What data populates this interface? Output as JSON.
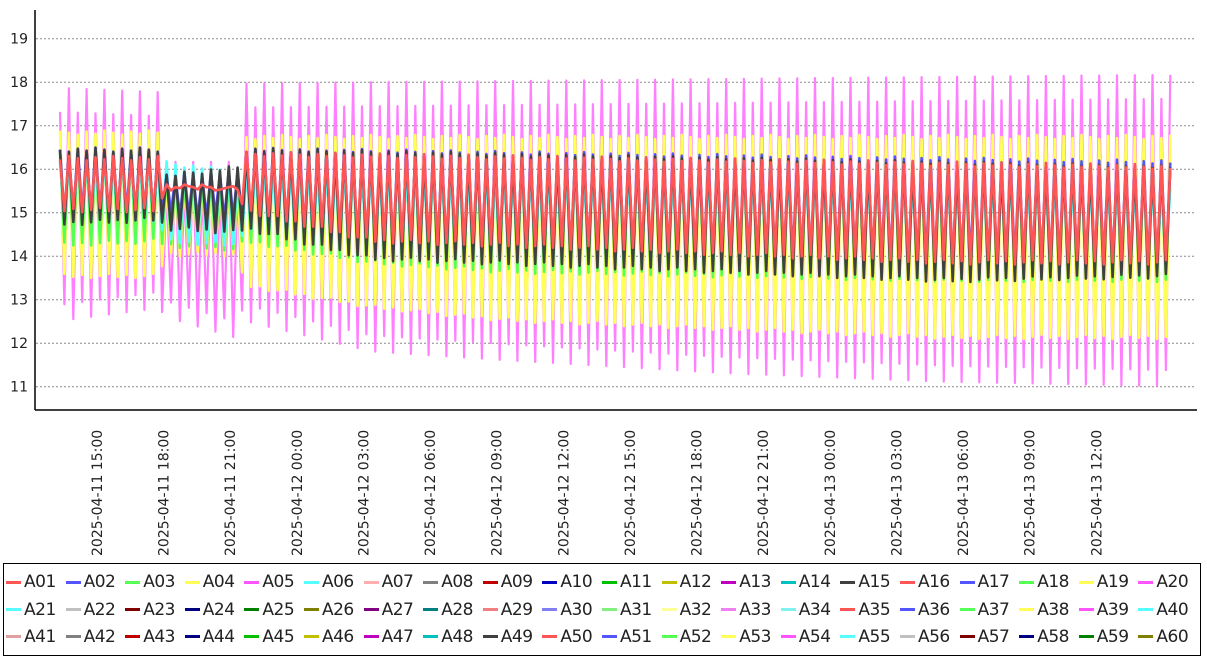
{
  "chart_data": {
    "type": "line",
    "title": "",
    "xlabel": "",
    "ylabel": "",
    "ylim": [
      10.5,
      19.7
    ],
    "yticks": [
      11,
      12,
      13,
      14,
      15,
      16,
      17,
      18,
      19
    ],
    "grid": "horizontal dotted",
    "x_range": [
      "2025-04-11 13:20",
      "2025-04-13 15:30"
    ],
    "xticks": [
      "2025-04-11 15:00",
      "2025-04-11 18:00",
      "2025-04-11 21:00",
      "2025-04-12 00:00",
      "2025-04-12 03:00",
      "2025-04-12 06:00",
      "2025-04-12 09:00",
      "2025-04-12 12:00",
      "2025-04-12 15:00",
      "2025-04-12 18:00",
      "2025-04-12 21:00",
      "2025-04-13 00:00",
      "2025-04-13 03:00",
      "2025-04-13 06:00",
      "2025-04-13 09:00",
      "2025-04-13 12:00"
    ],
    "legend_position": "bottom",
    "series": [
      {
        "name": "A01",
        "color": "#ff5555"
      },
      {
        "name": "A02",
        "color": "#5555ff"
      },
      {
        "name": "A03",
        "color": "#55ff55"
      },
      {
        "name": "A04",
        "color": "#ffff55"
      },
      {
        "name": "A05",
        "color": "#ff55ff"
      },
      {
        "name": "A06",
        "color": "#55ffff"
      },
      {
        "name": "A07",
        "color": "#ffafaf"
      },
      {
        "name": "A08",
        "color": "#808080"
      },
      {
        "name": "A09",
        "color": "#c00000"
      },
      {
        "name": "A10",
        "color": "#0000c0"
      },
      {
        "name": "A11",
        "color": "#00c000"
      },
      {
        "name": "A12",
        "color": "#c0c000"
      },
      {
        "name": "A13",
        "color": "#c000c0"
      },
      {
        "name": "A14",
        "color": "#00c0c0"
      },
      {
        "name": "A15",
        "color": "#404040"
      },
      {
        "name": "A16",
        "color": "#ff5555"
      },
      {
        "name": "A17",
        "color": "#5555ff"
      },
      {
        "name": "A18",
        "color": "#55ff55"
      },
      {
        "name": "A19",
        "color": "#ffff55"
      },
      {
        "name": "A20",
        "color": "#ff55ff"
      },
      {
        "name": "A21",
        "color": "#55ffff"
      },
      {
        "name": "A22",
        "color": "#c0c0c0"
      },
      {
        "name": "A23",
        "color": "#800000"
      },
      {
        "name": "A24",
        "color": "#000080"
      },
      {
        "name": "A25",
        "color": "#008000"
      },
      {
        "name": "A26",
        "color": "#808000"
      },
      {
        "name": "A27",
        "color": "#800080"
      },
      {
        "name": "A28",
        "color": "#008080"
      },
      {
        "name": "A29",
        "color": "#f08080"
      },
      {
        "name": "A30",
        "color": "#8080f0"
      },
      {
        "name": "A31",
        "color": "#80f080"
      },
      {
        "name": "A32",
        "color": "#ffff99"
      },
      {
        "name": "A33",
        "color": "#f080f0"
      },
      {
        "name": "A34",
        "color": "#80f0f0"
      },
      {
        "name": "A35",
        "color": "#ff5555"
      },
      {
        "name": "A36",
        "color": "#5555ff"
      },
      {
        "name": "A37",
        "color": "#55ff55"
      },
      {
        "name": "A38",
        "color": "#ffff55"
      },
      {
        "name": "A39",
        "color": "#ff55ff"
      },
      {
        "name": "A40",
        "color": "#55ffff"
      },
      {
        "name": "A41",
        "color": "#e0a0a0"
      },
      {
        "name": "A42",
        "color": "#808080"
      },
      {
        "name": "A43",
        "color": "#c00000"
      },
      {
        "name": "A44",
        "color": "#000080"
      },
      {
        "name": "A45",
        "color": "#00c000"
      },
      {
        "name": "A46",
        "color": "#c0c000"
      },
      {
        "name": "A47",
        "color": "#c000c0"
      },
      {
        "name": "A48",
        "color": "#00c0c0"
      },
      {
        "name": "A49",
        "color": "#404040"
      },
      {
        "name": "A50",
        "color": "#ff5555"
      },
      {
        "name": "A51",
        "color": "#5555ff"
      },
      {
        "name": "A52",
        "color": "#55ff55"
      },
      {
        "name": "A53",
        "color": "#ffff55"
      },
      {
        "name": "A54",
        "color": "#ff55ff"
      },
      {
        "name": "A55",
        "color": "#55ffff"
      },
      {
        "name": "A56",
        "color": "#c0c0c0"
      },
      {
        "name": "A57",
        "color": "#800000"
      },
      {
        "name": "A58",
        "color": "#000080"
      },
      {
        "name": "A59",
        "color": "#008000"
      },
      {
        "name": "A60",
        "color": "#808000"
      }
    ],
    "envelope_bands": [
      {
        "series": "A05",
        "color": "#ff80ff",
        "upper_max": [
          [
            0,
            17.9
          ],
          [
            4.5,
            17.8
          ],
          [
            4.7,
            16.2
          ],
          [
            8.0,
            16.2
          ],
          [
            8.3,
            18.0
          ],
          [
            50,
            18.2
          ]
        ],
        "lower_min": [
          [
            0,
            12.5
          ],
          [
            4.5,
            12.8
          ],
          [
            4.7,
            12.6
          ],
          [
            8.0,
            12.1
          ],
          [
            8.3,
            12.5
          ],
          [
            14,
            11.8
          ],
          [
            20,
            11.6
          ],
          [
            30,
            11.3
          ],
          [
            40,
            11.1
          ],
          [
            50,
            11.0
          ]
        ]
      },
      {
        "series": "A04",
        "color": "#ffff55",
        "upper": [
          [
            0,
            16.9
          ],
          [
            4.5,
            16.9
          ],
          [
            4.7,
            15.8
          ],
          [
            8.0,
            15.6
          ],
          [
            8.3,
            16.8
          ],
          [
            50,
            16.8
          ]
        ],
        "lower": [
          [
            0,
            13.5
          ],
          [
            4.5,
            13.5
          ],
          [
            4.7,
            14.0
          ],
          [
            8.0,
            14.0
          ],
          [
            8.3,
            13.3
          ],
          [
            14,
            12.8
          ],
          [
            20,
            12.5
          ],
          [
            30,
            12.3
          ],
          [
            40,
            12.1
          ],
          [
            50,
            12.1
          ]
        ]
      },
      {
        "series": "A03",
        "color": "#55ff55",
        "upper": [
          [
            0,
            16.4
          ],
          [
            4.5,
            16.4
          ],
          [
            4.7,
            15.9
          ],
          [
            8.0,
            15.8
          ],
          [
            8.3,
            16.4
          ],
          [
            50,
            16.1
          ]
        ],
        "lower": [
          [
            0,
            14.2
          ],
          [
            4.5,
            14.3
          ],
          [
            4.7,
            14.2
          ],
          [
            8.0,
            14.1
          ],
          [
            8.3,
            14.3
          ],
          [
            14,
            13.8
          ],
          [
            20,
            13.6
          ],
          [
            30,
            13.5
          ],
          [
            40,
            13.4
          ],
          [
            50,
            13.4
          ]
        ]
      },
      {
        "series": "A06",
        "color": "#55ffff",
        "upper": [
          [
            0,
            16.2
          ],
          [
            4.5,
            16.2
          ],
          [
            4.7,
            16.2
          ],
          [
            8.0,
            16.0
          ],
          [
            8.3,
            16.0
          ],
          [
            50,
            15.6
          ]
        ],
        "lower": [
          [
            0,
            14.8
          ],
          [
            4.5,
            14.8
          ],
          [
            4.7,
            14.3
          ],
          [
            8.0,
            14.2
          ],
          [
            8.3,
            14.6
          ],
          [
            14,
            14.1
          ],
          [
            20,
            14.0
          ],
          [
            30,
            14.0
          ],
          [
            40,
            13.9
          ],
          [
            50,
            13.8
          ]
        ]
      },
      {
        "series": "A02",
        "color": "#5555ff",
        "upper": [
          [
            0,
            16.5
          ],
          [
            4.5,
            16.5
          ],
          [
            4.7,
            15.9
          ],
          [
            8.0,
            16.0
          ],
          [
            8.3,
            16.5
          ],
          [
            50,
            16.2
          ]
        ],
        "lower": [
          [
            0,
            14.9
          ],
          [
            4.5,
            14.9
          ],
          [
            4.7,
            14.9
          ],
          [
            8.0,
            14.8
          ],
          [
            8.3,
            14.9
          ],
          [
            14,
            14.1
          ],
          [
            20,
            14.0
          ],
          [
            30,
            13.9
          ],
          [
            40,
            13.8
          ],
          [
            50,
            13.7
          ]
        ]
      },
      {
        "series": "A15",
        "color": "#404040",
        "upper": [
          [
            0,
            16.5
          ],
          [
            4.5,
            16.5
          ],
          [
            4.7,
            15.9
          ],
          [
            8.0,
            16.1
          ],
          [
            8.3,
            16.5
          ],
          [
            50,
            16.1
          ]
        ],
        "lower": [
          [
            0,
            14.7
          ],
          [
            4.5,
            14.8
          ],
          [
            4.7,
            14.6
          ],
          [
            8.0,
            14.5
          ],
          [
            8.3,
            14.6
          ],
          [
            14,
            13.9
          ],
          [
            20,
            13.8
          ],
          [
            30,
            13.6
          ],
          [
            40,
            13.4
          ],
          [
            50,
            13.5
          ]
        ]
      },
      {
        "series": "A01",
        "color": "#ff5555",
        "upper": [
          [
            0,
            16.3
          ],
          [
            4.5,
            16.3
          ],
          [
            4.7,
            15.7
          ],
          [
            8.0,
            15.6
          ],
          [
            8.3,
            16.4
          ],
          [
            50,
            16.1
          ]
        ],
        "lower": [
          [
            0,
            15.0
          ],
          [
            4.5,
            15.0
          ],
          [
            4.7,
            15.5
          ],
          [
            8.0,
            15.5
          ],
          [
            8.3,
            15.0
          ],
          [
            14,
            14.3
          ],
          [
            20,
            14.2
          ],
          [
            30,
            14.0
          ],
          [
            40,
            13.8
          ],
          [
            50,
            13.8
          ]
        ]
      }
    ]
  }
}
